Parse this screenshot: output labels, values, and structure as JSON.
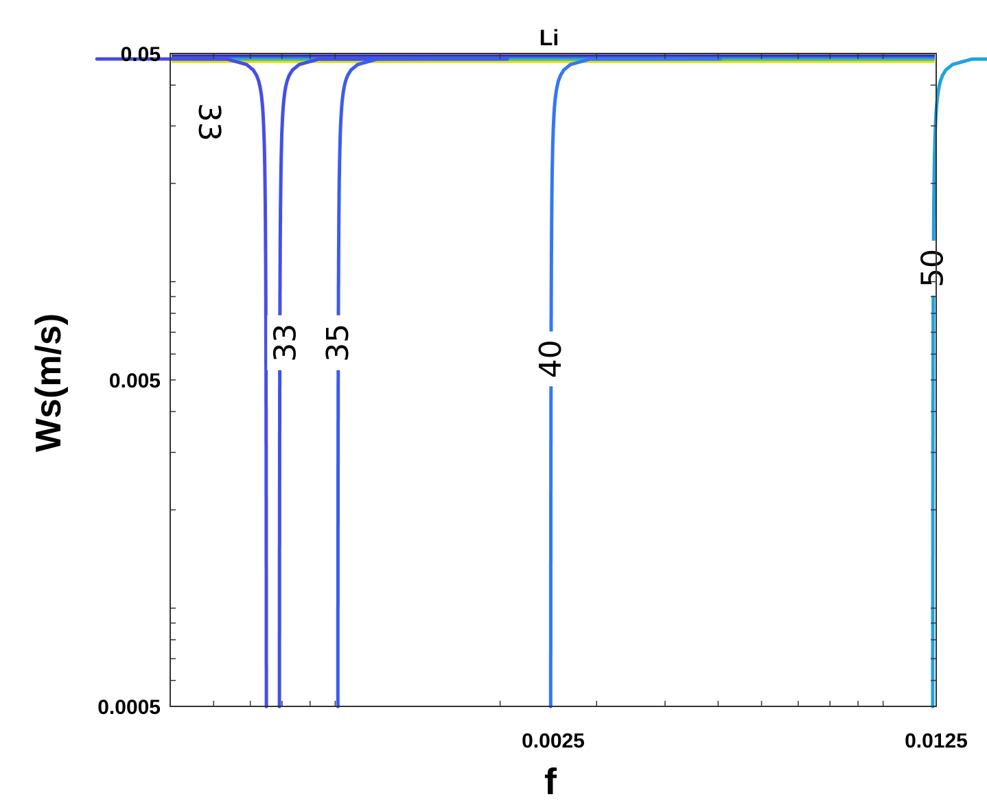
{
  "chart_data": {
    "type": "contour",
    "title": "Li",
    "xlabel": "f",
    "ylabel": "Ws(m/s)",
    "xscale": "log",
    "yscale": "log",
    "xlim": [
      0.0005,
      0.0125
    ],
    "ylim": [
      0.0005,
      0.05
    ],
    "x_ticks": [
      {
        "value": 0.0025,
        "label": "0.0025"
      },
      {
        "value": 0.0125,
        "label": "0.0125"
      }
    ],
    "y_ticks": [
      {
        "value": 0.05,
        "label": "0.05"
      },
      {
        "value": 0.005,
        "label": "0.005"
      },
      {
        "value": 0.0005,
        "label": "0.0005"
      }
    ],
    "grid": false,
    "contours": [
      {
        "level": "33",
        "color": "#4a4ce6",
        "asymptote_f": 0.00075,
        "label": "33",
        "label_ws": 0.0011,
        "label_f": 0.0062
      },
      {
        "level": "33",
        "color": "#4150ea",
        "asymptote_f": 0.00079,
        "label": "33",
        "label_ws": 0.0065,
        "label_f": 0.00081
      },
      {
        "level": "35",
        "color": "#3c5cee",
        "asymptote_f": 0.00101,
        "label": "35",
        "label_ws": 0.0065,
        "label_f": 0.00101
      },
      {
        "level": "40",
        "color": "#3477f4",
        "asymptote_f": 0.00247,
        "label": "40",
        "label_ws": 0.0058,
        "label_f": 0.00247
      },
      {
        "level": "50",
        "color": "#1fa3e0",
        "asymptote_f": 0.0123,
        "label": "50",
        "label_ws": 0.011,
        "label_f": 0.0123
      }
    ],
    "top_band_colors": [
      "#2b1f8f",
      "#3a3fd0",
      "#3f5ee8",
      "#1fa3e0",
      "#37b39a",
      "#7cc85a",
      "#e8e020"
    ]
  }
}
